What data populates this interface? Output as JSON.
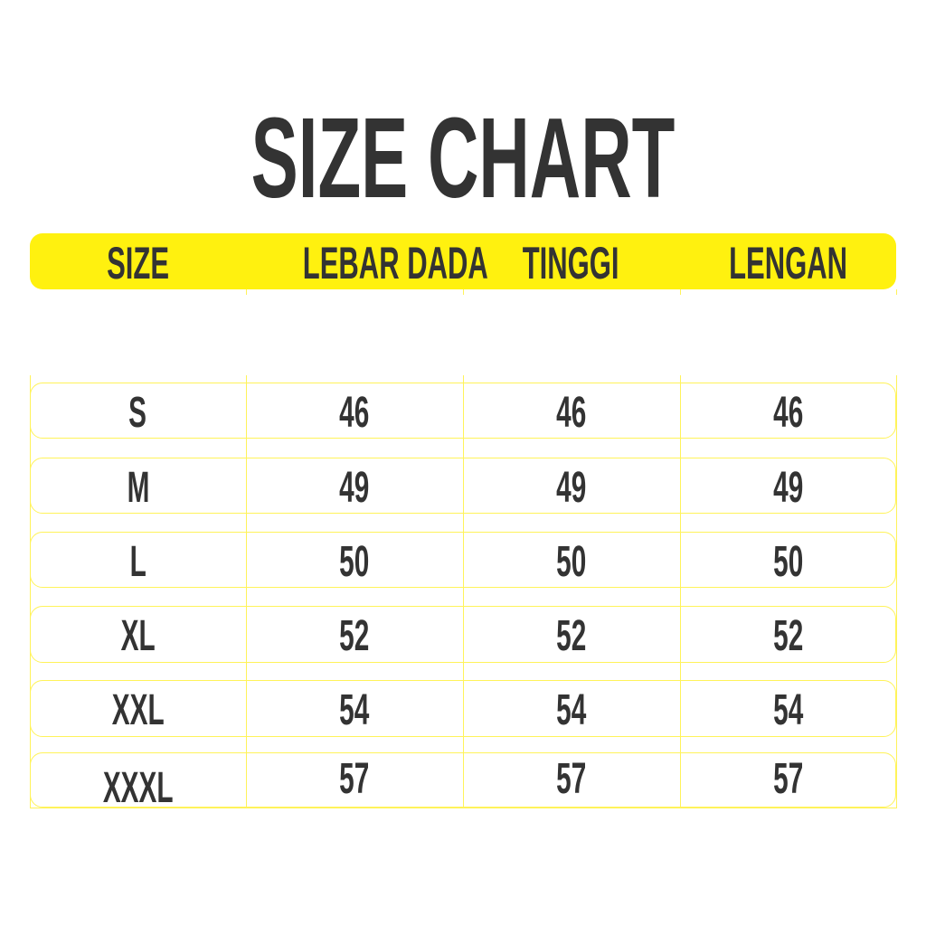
{
  "chart_data": {
    "type": "table",
    "title": "SIZE CHART",
    "columns": [
      "SIZE",
      "LEBAR DADA",
      "TINGGI",
      "LENGAN"
    ],
    "rows": [
      [
        "S",
        "46",
        "46",
        "46"
      ],
      [
        "M",
        "49",
        "49",
        "49"
      ],
      [
        "L",
        "50",
        "50",
        "50"
      ],
      [
        "XL",
        "52",
        "52",
        "52"
      ],
      [
        "XXL",
        "54",
        "54",
        "54"
      ],
      [
        "XXXL",
        "57",
        "57",
        "57"
      ]
    ],
    "colors": {
      "header_bg": "#fff10f",
      "text": "#333333",
      "grid": "#fff35a"
    }
  }
}
